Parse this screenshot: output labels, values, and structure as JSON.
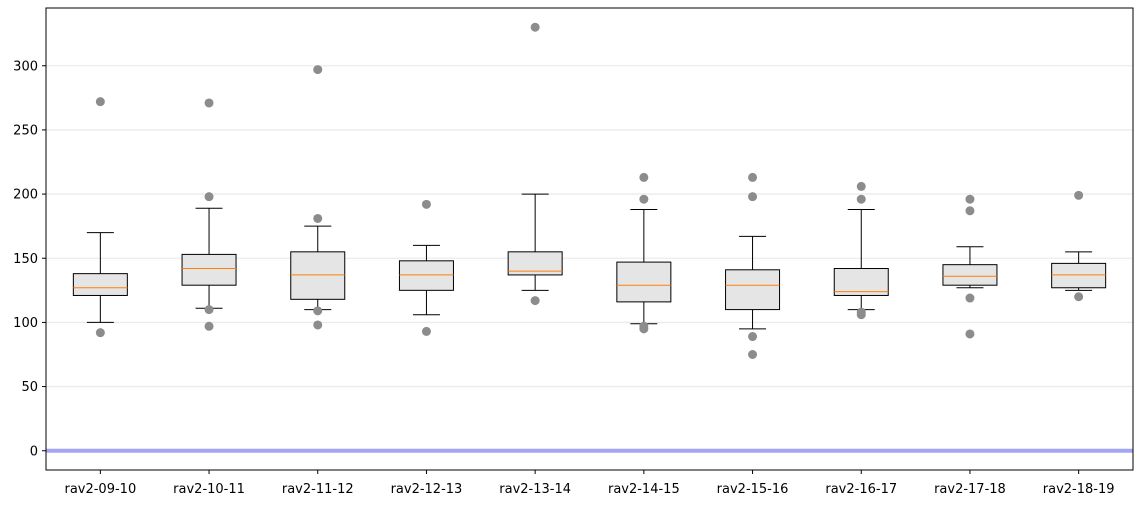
{
  "chart_data": {
    "type": "box",
    "title": "",
    "xlabel": "",
    "ylabel": "",
    "ylim": [
      -15,
      345
    ],
    "yticks": [
      0,
      50,
      100,
      150,
      200,
      250,
      300
    ],
    "ytick_labels": [
      "0",
      "50",
      "100",
      "150",
      "200",
      "250",
      "300"
    ],
    "grid": "horizontal",
    "reference_line": {
      "y": 0,
      "color": "#a5a5f5"
    },
    "box_fill": "#e5e5e5",
    "median_color": "#ff7f0e",
    "outlier_color": "#8c8c8c",
    "categories": [
      "rav2-09-10",
      "rav2-10-11",
      "rav2-11-12",
      "rav2-12-13",
      "rav2-13-14",
      "rav2-14-15",
      "rav2-15-16",
      "rav2-16-17",
      "rav2-17-18",
      "rav2-18-19"
    ],
    "boxes": [
      {
        "whislo": 100,
        "q1": 121,
        "med": 127,
        "q3": 138,
        "whishi": 170,
        "fliers": [
          92,
          272
        ]
      },
      {
        "whislo": 111,
        "q1": 129,
        "med": 142,
        "q3": 153,
        "whishi": 189,
        "fliers": [
          97,
          110,
          198,
          271
        ]
      },
      {
        "whislo": 110,
        "q1": 118,
        "med": 137,
        "q3": 155,
        "whishi": 175,
        "fliers": [
          98,
          109,
          181,
          297
        ]
      },
      {
        "whislo": 106,
        "q1": 125,
        "med": 137,
        "q3": 148,
        "whishi": 160,
        "fliers": [
          93,
          192
        ]
      },
      {
        "whislo": 125,
        "q1": 137,
        "med": 140,
        "q3": 155,
        "whishi": 200,
        "fliers": [
          117,
          330
        ]
      },
      {
        "whislo": 99,
        "q1": 116,
        "med": 129,
        "q3": 147,
        "whishi": 188,
        "fliers": [
          95,
          97,
          196,
          213
        ]
      },
      {
        "whislo": 95,
        "q1": 110,
        "med": 129,
        "q3": 141,
        "whishi": 167,
        "fliers": [
          75,
          89,
          198,
          213
        ]
      },
      {
        "whislo": 110,
        "q1": 121,
        "med": 124,
        "q3": 142,
        "whishi": 188,
        "fliers": [
          106,
          108,
          196,
          206
        ]
      },
      {
        "whislo": 127,
        "q1": 129,
        "med": 136,
        "q3": 145,
        "whishi": 159,
        "fliers": [
          91,
          119,
          187,
          196
        ]
      },
      {
        "whislo": 125,
        "q1": 127,
        "med": 137,
        "q3": 146,
        "whishi": 155,
        "fliers": [
          120,
          199
        ]
      }
    ]
  }
}
